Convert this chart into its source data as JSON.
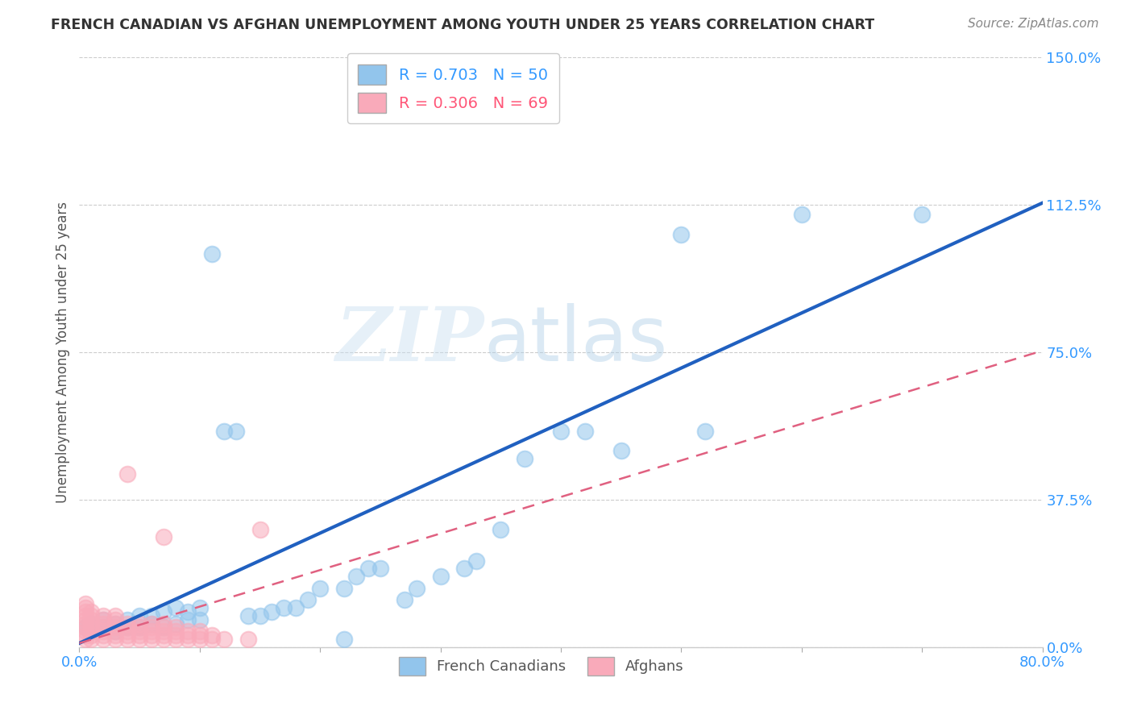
{
  "title": "FRENCH CANADIAN VS AFGHAN UNEMPLOYMENT AMONG YOUTH UNDER 25 YEARS CORRELATION CHART",
  "source": "Source: ZipAtlas.com",
  "ylabel": "Unemployment Among Youth under 25 years",
  "ytick_vals": [
    0.0,
    0.375,
    0.75,
    1.125,
    1.5
  ],
  "ytick_labels": [
    "0.0%",
    "37.5%",
    "75.0%",
    "112.5%",
    "150.0%"
  ],
  "xlim": [
    0.0,
    0.8
  ],
  "ylim": [
    0.0,
    1.5
  ],
  "french_R": 0.703,
  "french_N": 50,
  "afghan_R": 0.306,
  "afghan_N": 69,
  "french_color": "#92C5EC",
  "afghan_color": "#F9AABA",
  "french_line_color": "#2060C0",
  "afghan_line_color": "#E06080",
  "watermark_zip": "ZIP",
  "watermark_atlas": "atlas",
  "french_scatter_x": [
    0.005,
    0.01,
    0.01,
    0.02,
    0.02,
    0.03,
    0.03,
    0.04,
    0.04,
    0.05,
    0.05,
    0.06,
    0.06,
    0.07,
    0.07,
    0.08,
    0.08,
    0.09,
    0.09,
    0.1,
    0.1,
    0.11,
    0.12,
    0.13,
    0.14,
    0.15,
    0.16,
    0.17,
    0.18,
    0.19,
    0.2,
    0.22,
    0.23,
    0.24,
    0.25,
    0.27,
    0.28,
    0.3,
    0.32,
    0.33,
    0.35,
    0.37,
    0.4,
    0.42,
    0.45,
    0.5,
    0.52,
    0.6,
    0.7,
    0.22
  ],
  "french_scatter_y": [
    0.05,
    0.04,
    0.06,
    0.05,
    0.07,
    0.04,
    0.06,
    0.05,
    0.07,
    0.05,
    0.08,
    0.06,
    0.08,
    0.05,
    0.09,
    0.06,
    0.1,
    0.07,
    0.09,
    0.07,
    0.1,
    1.0,
    0.55,
    0.55,
    0.08,
    0.08,
    0.09,
    0.1,
    0.1,
    0.12,
    0.15,
    0.15,
    0.18,
    0.2,
    0.2,
    0.12,
    0.15,
    0.18,
    0.2,
    0.22,
    0.3,
    0.48,
    0.55,
    0.55,
    0.5,
    1.05,
    0.55,
    1.1,
    1.1,
    0.02
  ],
  "afghan_scatter_x": [
    0.005,
    0.005,
    0.005,
    0.005,
    0.005,
    0.005,
    0.005,
    0.005,
    0.005,
    0.005,
    0.01,
    0.01,
    0.01,
    0.01,
    0.01,
    0.01,
    0.01,
    0.01,
    0.02,
    0.02,
    0.02,
    0.02,
    0.02,
    0.02,
    0.02,
    0.03,
    0.03,
    0.03,
    0.03,
    0.03,
    0.03,
    0.03,
    0.04,
    0.04,
    0.04,
    0.04,
    0.04,
    0.04,
    0.05,
    0.05,
    0.05,
    0.05,
    0.05,
    0.06,
    0.06,
    0.06,
    0.06,
    0.06,
    0.07,
    0.07,
    0.07,
    0.07,
    0.07,
    0.07,
    0.08,
    0.08,
    0.08,
    0.08,
    0.09,
    0.09,
    0.09,
    0.1,
    0.1,
    0.1,
    0.11,
    0.11,
    0.12,
    0.14,
    0.15
  ],
  "afghan_scatter_y": [
    0.02,
    0.03,
    0.04,
    0.05,
    0.06,
    0.07,
    0.08,
    0.09,
    0.1,
    0.11,
    0.02,
    0.03,
    0.04,
    0.05,
    0.06,
    0.07,
    0.08,
    0.09,
    0.02,
    0.03,
    0.04,
    0.05,
    0.06,
    0.07,
    0.08,
    0.02,
    0.03,
    0.04,
    0.05,
    0.06,
    0.07,
    0.08,
    0.02,
    0.03,
    0.04,
    0.05,
    0.06,
    0.44,
    0.02,
    0.03,
    0.04,
    0.05,
    0.06,
    0.02,
    0.03,
    0.04,
    0.05,
    0.06,
    0.02,
    0.03,
    0.04,
    0.05,
    0.06,
    0.28,
    0.02,
    0.03,
    0.04,
    0.05,
    0.02,
    0.03,
    0.04,
    0.02,
    0.03,
    0.04,
    0.02,
    0.03,
    0.02,
    0.02,
    0.3
  ]
}
